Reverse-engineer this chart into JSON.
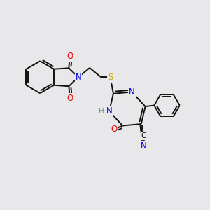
{
  "bg_color": "#e8e8ea",
  "bond_color": "#111111",
  "bond_width": 1.4,
  "atom_colors": {
    "N": "#0000ee",
    "O": "#ee0000",
    "S": "#ccaa00",
    "H": "#669999",
    "C": "#111111"
  },
  "font_size": 7.5,
  "fig_size": [
    3.0,
    3.0
  ],
  "dpi": 100
}
